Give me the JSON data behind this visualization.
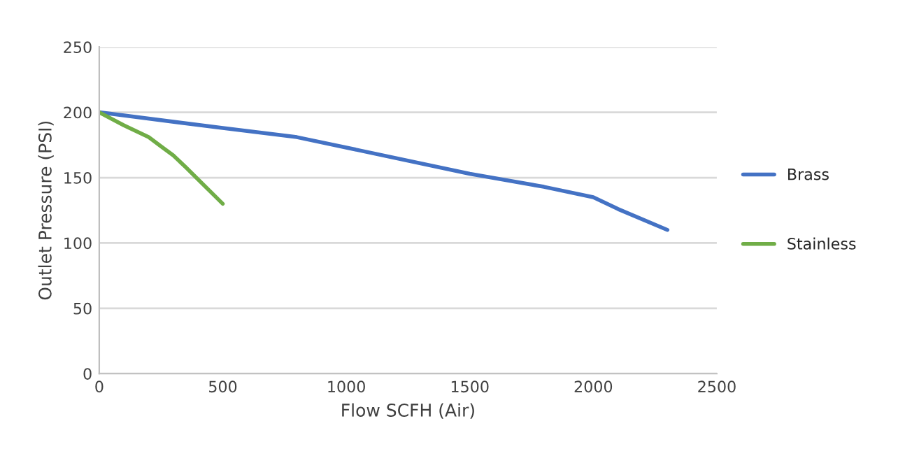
{
  "chart_data": {
    "type": "line",
    "xlabel": "Flow SCFH (Air)",
    "ylabel": "Outlet Pressure (PSI)",
    "xlim": [
      0,
      2500
    ],
    "xticks": [
      0,
      500,
      1000,
      1500,
      2000,
      2500
    ],
    "ylim": [
      0,
      250
    ],
    "yticks": [
      0,
      50,
      100,
      150,
      200,
      250
    ],
    "grid": "y",
    "legend": "right",
    "marker": "none",
    "line_style": "solid",
    "series": [
      {
        "name": "Brass",
        "color": "#4472c4",
        "x": [
          0,
          500,
          800,
          1000,
          1500,
          1800,
          2000,
          2100,
          2300
        ],
        "values": [
          200,
          188,
          181,
          173,
          153,
          143,
          135,
          126,
          110
        ]
      },
      {
        "name": "Stainless",
        "color": "#70ad47",
        "x": [
          0,
          100,
          200,
          250,
          300,
          350,
          500
        ],
        "values": [
          200,
          190,
          181,
          174,
          167,
          158,
          130
        ]
      }
    ]
  }
}
